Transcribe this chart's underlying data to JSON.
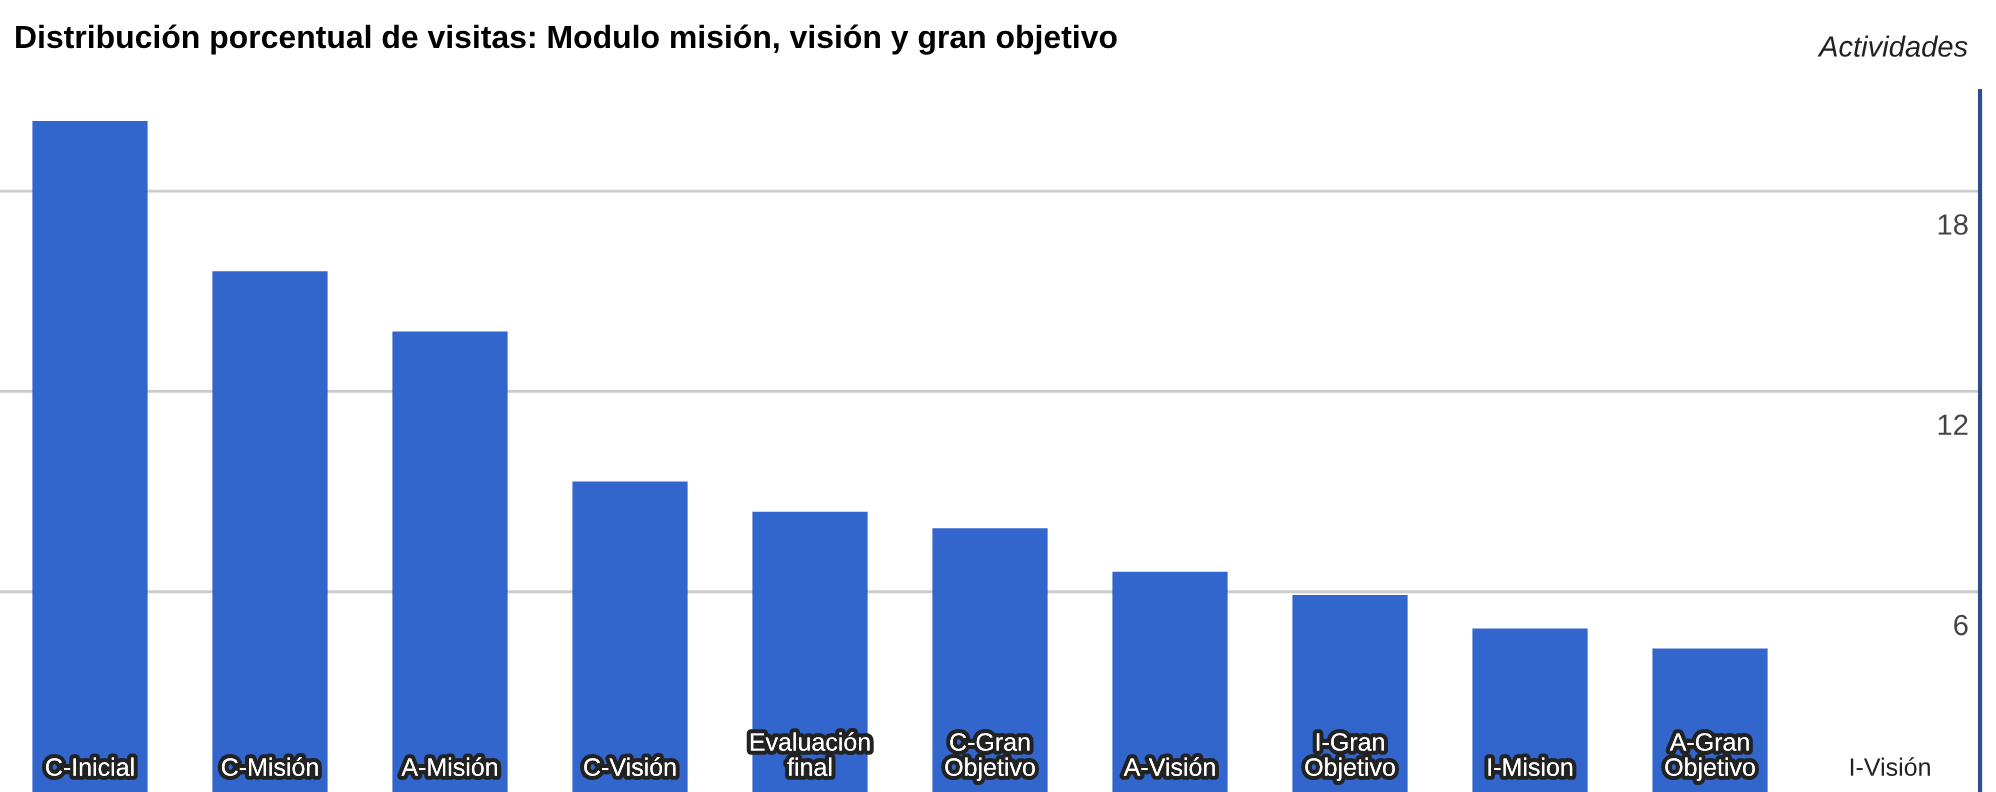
{
  "chart_data": {
    "type": "bar",
    "title": "Distribución porcentual de visitas: Modulo misión, visión y gran objetivo",
    "ylabel": "Actividades",
    "categories": [
      "C-Inicial",
      "C-Misión",
      "A-Misión",
      "C-Visión",
      "Evaluación final",
      "C-Gran Objetivo",
      "A-Visión",
      "I-Gran Objetivo",
      "I-Mision",
      "A-Gran Objetivo",
      "I-Visión"
    ],
    "values": [
      20.1,
      15.6,
      13.8,
      9.3,
      8.4,
      7.9,
      6.6,
      5.9,
      4.9,
      4.3,
      0
    ],
    "color": "#3266cc",
    "ylim": [
      0,
      21
    ],
    "yticks": [
      6,
      12,
      18
    ],
    "grid": "y",
    "legend": false
  }
}
